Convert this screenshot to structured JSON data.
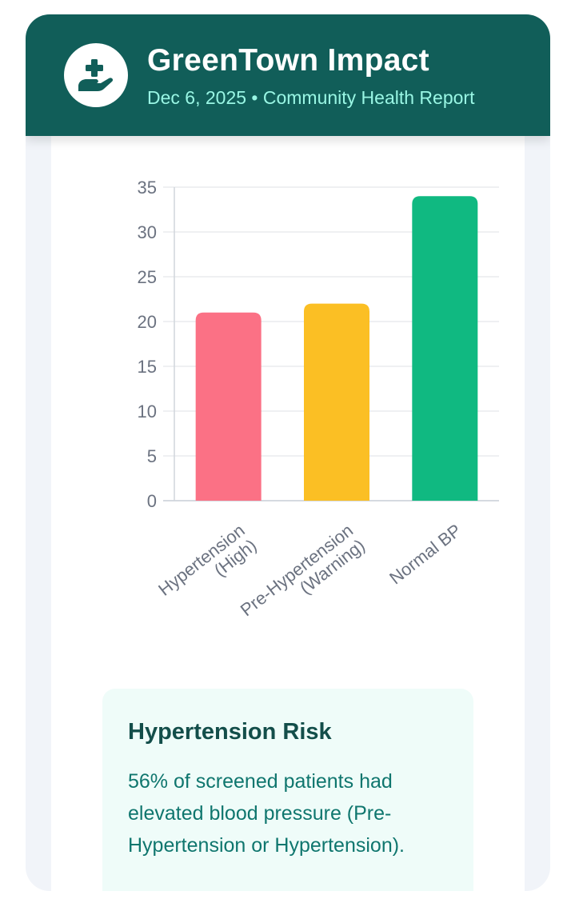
{
  "header": {
    "title": "GreenTown Impact",
    "subtitle": "Dec 6, 2025 • Community Health Report",
    "logo_icon": "hand-holding-medical-icon"
  },
  "colors": {
    "header_bg": "#115e59",
    "subtitle": "#99f6e4",
    "high": "#fb7185",
    "warning": "#fbbf24",
    "normal": "#10b981"
  },
  "chart_data": {
    "type": "bar",
    "categories": [
      "Hypertension\n(High)",
      "Pre-Hypertension\n(Warning)",
      "Normal BP"
    ],
    "values": [
      21,
      22,
      34
    ],
    "bar_colors": [
      "#fb7185",
      "#fbbf24",
      "#10b981"
    ],
    "ylim": [
      0,
      35
    ],
    "yticks": [
      0,
      5,
      10,
      15,
      20,
      25,
      30,
      35
    ],
    "grid": true,
    "legend": "none"
  },
  "insight": {
    "title": "Hypertension Risk",
    "text": "56% of screened patients had elevated blood pressure (Pre-Hypertension or Hypertension)."
  }
}
